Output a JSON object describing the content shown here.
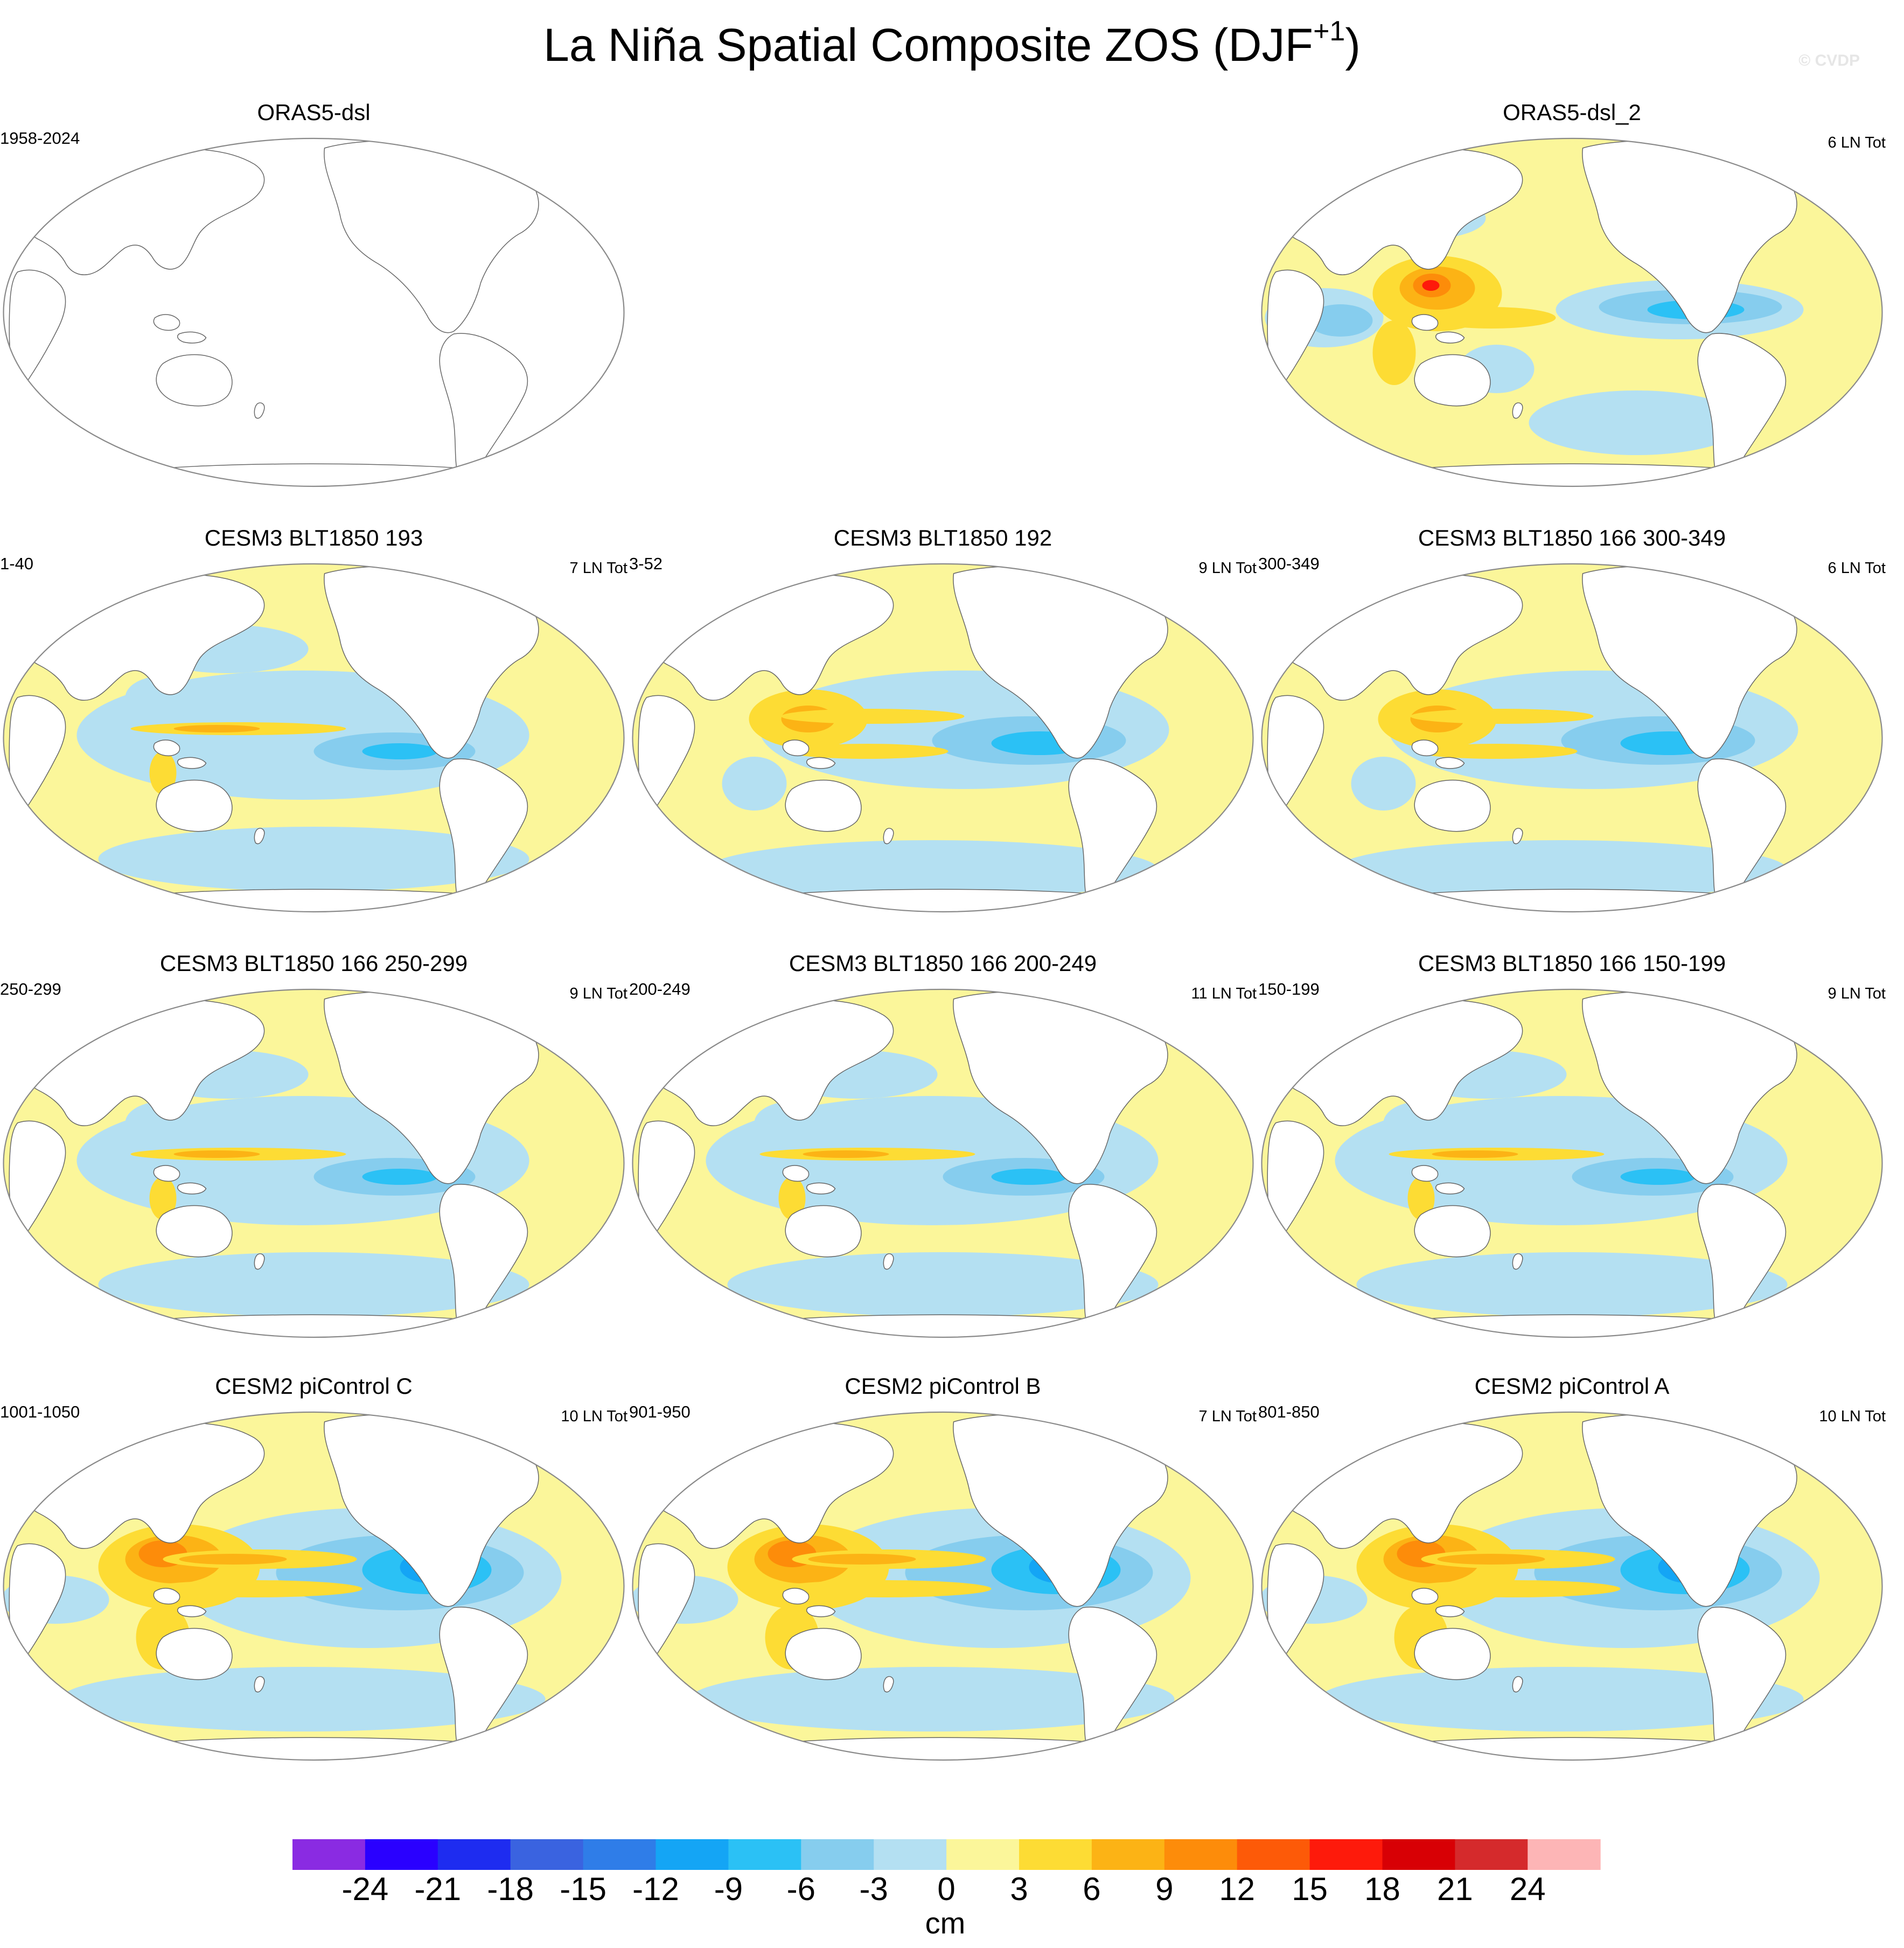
{
  "title": {
    "main": "La Niña Spatial Composite ZOS (DJF",
    "sup": "+1",
    "close": ")",
    "watermark": "© CVDP"
  },
  "chart_data": {
    "type": "heatmap",
    "description_units": "cm",
    "colorbar": {
      "label": "cm",
      "levels": [
        -24,
        -21,
        -18,
        -15,
        -12,
        -9,
        -6,
        -3,
        0,
        3,
        6,
        9,
        12,
        15,
        18,
        21,
        24
      ],
      "tick_labels": [
        "-24",
        "-21",
        "-18",
        "-15",
        "-12",
        "-9",
        "-6",
        "-3",
        "0",
        "3",
        "6",
        "9",
        "12",
        "15",
        "18",
        "21",
        "24"
      ],
      "colors": [
        "#8a2be2",
        "#2a00ff",
        "#1e2cf0",
        "#3a63e0",
        "#2f7de8",
        "#14a5f5",
        "#2bc1f5",
        "#86cdee",
        "#b4e0f2",
        "#fbf69a",
        "#fddc34",
        "#fcb315",
        "#fd8c0a",
        "#fd5a08",
        "#fe1a0b",
        "#d80005",
        "#d52a2c",
        "#fdb5b6"
      ]
    },
    "panels": [
      {
        "id": "oras5-dsl",
        "title": "ORAS5-dsl",
        "years": "1958-2024",
        "count": "",
        "shading": "empty",
        "pattern": "none"
      },
      {
        "id": "oras5-dsl-2",
        "title": "ORAS5-dsl_2",
        "years": "",
        "count": "6 LN Tot",
        "shading": "full",
        "pattern": "obs"
      },
      {
        "id": "cesm3-193",
        "title": "CESM3 BLT1850 193",
        "years": "1-40",
        "count": "7 LN Tot",
        "shading": "full",
        "pattern": "weak-model"
      },
      {
        "id": "cesm3-192",
        "title": "CESM3 BLT1850 192",
        "years": "3-52",
        "count": "9 LN Tot",
        "shading": "full",
        "pattern": "model"
      },
      {
        "id": "cesm3-166-300",
        "title": "CESM3 BLT1850 166 300-349",
        "years": "300-349",
        "count": "6 LN Tot",
        "shading": "full",
        "pattern": "model"
      },
      {
        "id": "cesm3-166-250",
        "title": "CESM3 BLT1850 166 250-299",
        "years": "250-299",
        "count": "9 LN Tot",
        "shading": "full",
        "pattern": "weak-model"
      },
      {
        "id": "cesm3-166-200",
        "title": "CESM3 BLT1850 166 200-249",
        "years": "200-249",
        "count": "11 LN Tot",
        "shading": "full",
        "pattern": "weak-model"
      },
      {
        "id": "cesm3-166-150",
        "title": "CESM3 BLT1850 166 150-199",
        "years": "150-199",
        "count": "9 LN Tot",
        "shading": "full",
        "pattern": "weak-model"
      },
      {
        "id": "cesm2-c",
        "title": "CESM2 piControl C",
        "years": "1001-1050",
        "count": "10 LN Tot",
        "shading": "full",
        "pattern": "strong-model"
      },
      {
        "id": "cesm2-b",
        "title": "CESM2 piControl B",
        "years": "901-950",
        "count": "7 LN Tot",
        "shading": "full",
        "pattern": "strong-model"
      },
      {
        "id": "cesm2-a",
        "title": "CESM2 piControl A",
        "years": "801-850",
        "count": "10 LN Tot",
        "shading": "full",
        "pattern": "strong-model"
      }
    ]
  }
}
